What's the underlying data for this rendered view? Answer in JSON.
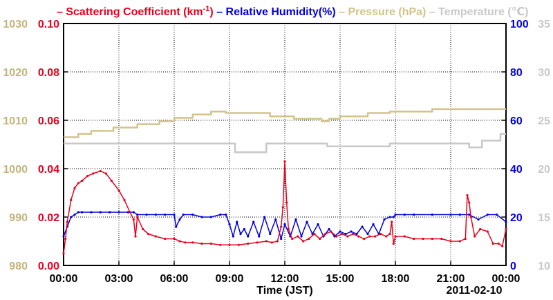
{
  "chart_data": {
    "type": "line",
    "xlabel": "Time (JST)",
    "date_label": "2011-02-10",
    "x_ticks": [
      "00:00",
      "03:00",
      "06:00",
      "09:00",
      "12:00",
      "15:00",
      "18:00",
      "21:00",
      "00:00"
    ],
    "x_range_hours": [
      0,
      24
    ],
    "legend": [
      {
        "dash": "– ",
        "text": "Scattering Coefficient (km",
        "sup": "-1",
        "tail": ")",
        "color": "#e8001c"
      },
      {
        "dash": " – ",
        "text": "Relative Humidity(%)",
        "color": "#0000e0"
      },
      {
        "dash": " – ",
        "text": "Pressure (hPa)",
        "color": "#d2c38a"
      },
      {
        "dash": " – ",
        "text": "Temperature (℃)",
        "color": "#c8c8c8"
      }
    ],
    "axes": {
      "pressure": {
        "ticks": [
          "980",
          "990",
          "1000",
          "1010",
          "1020",
          "1030"
        ],
        "min": 980,
        "max": 1030,
        "color": "#c4b37a"
      },
      "scattering": {
        "ticks": [
          "0.00",
          "0.02",
          "0.04",
          "0.06",
          "0.08",
          "0.10"
        ],
        "min": 0,
        "max": 0.1,
        "color": "#e8001c"
      },
      "humidity": {
        "ticks": [
          "0",
          "20",
          "40",
          "60",
          "80",
          "100"
        ],
        "min": 0,
        "max": 100,
        "color": "#0000e0"
      },
      "temperature": {
        "ticks": [
          "10",
          "15",
          "20",
          "25",
          "30",
          "35"
        ],
        "min": 10,
        "max": 35,
        "color": "#c8c8c8"
      }
    },
    "series": [
      {
        "name": "Temperature",
        "axis": "temperature",
        "color": "#c8c8c8",
        "markers": false,
        "x": [
          0,
          9.3,
          9.3,
          11.0,
          11.0,
          14.3,
          14.3,
          17.7,
          17.7,
          22.0,
          22.0,
          22.7,
          22.7,
          23.7,
          23.7,
          24.0
        ],
        "y": [
          22.6,
          22.6,
          21.7,
          21.7,
          22.6,
          22.6,
          22.3,
          22.3,
          22.6,
          22.6,
          22.2,
          22.2,
          22.9,
          22.9,
          23.6,
          23.6
        ]
      },
      {
        "name": "Pressure",
        "axis": "pressure",
        "color": "#d2c38a",
        "markers": false,
        "x": [
          0,
          0.8,
          0.8,
          1.5,
          1.5,
          2.7,
          2.7,
          4.0,
          4.0,
          5.2,
          5.2,
          6.0,
          6.0,
          7.0,
          7.0,
          8.0,
          8.0,
          8.8,
          8.8,
          11.2,
          11.2,
          12.5,
          12.5,
          14.0,
          14.0,
          14.4,
          14.4,
          15.0,
          15.0,
          16.5,
          16.5,
          17.7,
          17.7,
          20.0,
          20.0,
          24.0
        ],
        "y": [
          1006.5,
          1006.5,
          1007.2,
          1007.2,
          1007.8,
          1007.8,
          1008.5,
          1008.5,
          1009.2,
          1009.2,
          1009.8,
          1009.8,
          1010.5,
          1010.5,
          1011.2,
          1011.2,
          1011.8,
          1011.8,
          1011.5,
          1011.5,
          1010.8,
          1010.8,
          1010.3,
          1010.3,
          1009.8,
          1009.8,
          1010.3,
          1010.3,
          1010.8,
          1010.8,
          1011.5,
          1011.5,
          1011.8,
          1011.8,
          1012.3,
          1012.3
        ]
      },
      {
        "name": "Relative Humidity",
        "axis": "humidity",
        "color": "#0000e0",
        "markers": true,
        "x": [
          0,
          0.2,
          0.4,
          0.6,
          0.8,
          1.0,
          1.5,
          2.0,
          2.5,
          3.0,
          3.5,
          3.8,
          4.0,
          4.5,
          5.0,
          5.5,
          6.0,
          6.1,
          6.3,
          6.5,
          7.0,
          7.5,
          8.0,
          8.5,
          8.8,
          9.0,
          9.2,
          9.4,
          9.6,
          9.8,
          10.0,
          10.3,
          10.6,
          10.9,
          11.2,
          11.5,
          11.8,
          12.0,
          12.3,
          12.6,
          12.9,
          13.2,
          13.5,
          13.8,
          14.1,
          14.4,
          14.7,
          15.0,
          15.3,
          15.6,
          15.9,
          16.2,
          16.5,
          16.8,
          17.1,
          17.4,
          17.7,
          17.9,
          18.0,
          18.5,
          19.0,
          20.0,
          21.0,
          21.5,
          22.0,
          22.5,
          23.0,
          23.5,
          24.0
        ],
        "y": [
          12,
          16,
          20,
          21,
          22,
          22,
          22,
          22,
          22,
          22,
          22,
          22,
          21,
          21,
          21,
          21,
          21,
          16,
          19,
          21,
          21,
          20,
          20,
          21,
          21,
          17,
          12,
          18,
          13,
          15,
          12,
          18,
          12,
          20,
          13,
          19,
          11,
          17,
          12,
          19,
          12,
          18,
          13,
          17,
          12,
          15,
          12,
          14,
          13,
          14,
          13,
          16,
          13,
          17,
          13,
          19,
          20,
          20,
          21,
          21,
          21,
          21,
          21,
          21,
          21,
          19,
          21,
          21,
          18
        ]
      },
      {
        "name": "Scattering Coefficient",
        "axis": "scattering",
        "color": "#e8001c",
        "markers": true,
        "x": [
          0,
          0.1,
          0.2,
          0.4,
          0.6,
          0.8,
          1.0,
          1.3,
          1.6,
          2.0,
          2.3,
          2.6,
          3.0,
          3.3,
          3.6,
          3.8,
          3.9,
          4.0,
          4.3,
          4.6,
          5.0,
          5.5,
          6.0,
          6.3,
          6.6,
          7.0,
          7.5,
          8.0,
          8.5,
          9.0,
          9.5,
          10.0,
          10.5,
          11.0,
          11.3,
          11.6,
          11.8,
          11.9,
          12.0,
          12.1,
          12.2,
          12.4,
          12.7,
          13.0,
          13.3,
          13.6,
          13.9,
          14.2,
          14.5,
          14.8,
          15.1,
          15.4,
          15.7,
          16.0,
          16.3,
          16.6,
          16.9,
          17.2,
          17.5,
          17.7,
          17.8,
          17.9,
          18.0,
          18.5,
          19.0,
          19.5,
          20.0,
          20.5,
          21.0,
          21.5,
          21.8,
          21.9,
          22.0,
          22.1,
          22.3,
          22.6,
          23.0,
          23.3,
          23.6,
          23.8,
          24.0
        ],
        "y": [
          0.005,
          0.011,
          0.018,
          0.027,
          0.032,
          0.034,
          0.035,
          0.037,
          0.038,
          0.039,
          0.038,
          0.035,
          0.031,
          0.027,
          0.022,
          0.019,
          0.012,
          0.02,
          0.015,
          0.013,
          0.012,
          0.011,
          0.011,
          0.01,
          0.0095,
          0.0095,
          0.009,
          0.009,
          0.0085,
          0.0085,
          0.0085,
          0.009,
          0.0095,
          0.01,
          0.0095,
          0.01,
          0.016,
          0.024,
          0.043,
          0.026,
          0.015,
          0.011,
          0.012,
          0.01,
          0.011,
          0.013,
          0.011,
          0.013,
          0.014,
          0.012,
          0.013,
          0.012,
          0.013,
          0.012,
          0.011,
          0.012,
          0.012,
          0.013,
          0.012,
          0.013,
          0.018,
          0.009,
          0.012,
          0.012,
          0.011,
          0.011,
          0.011,
          0.011,
          0.01,
          0.01,
          0.011,
          0.029,
          0.026,
          0.02,
          0.012,
          0.015,
          0.014,
          0.009,
          0.009,
          0.008,
          0.015
        ]
      }
    ]
  }
}
